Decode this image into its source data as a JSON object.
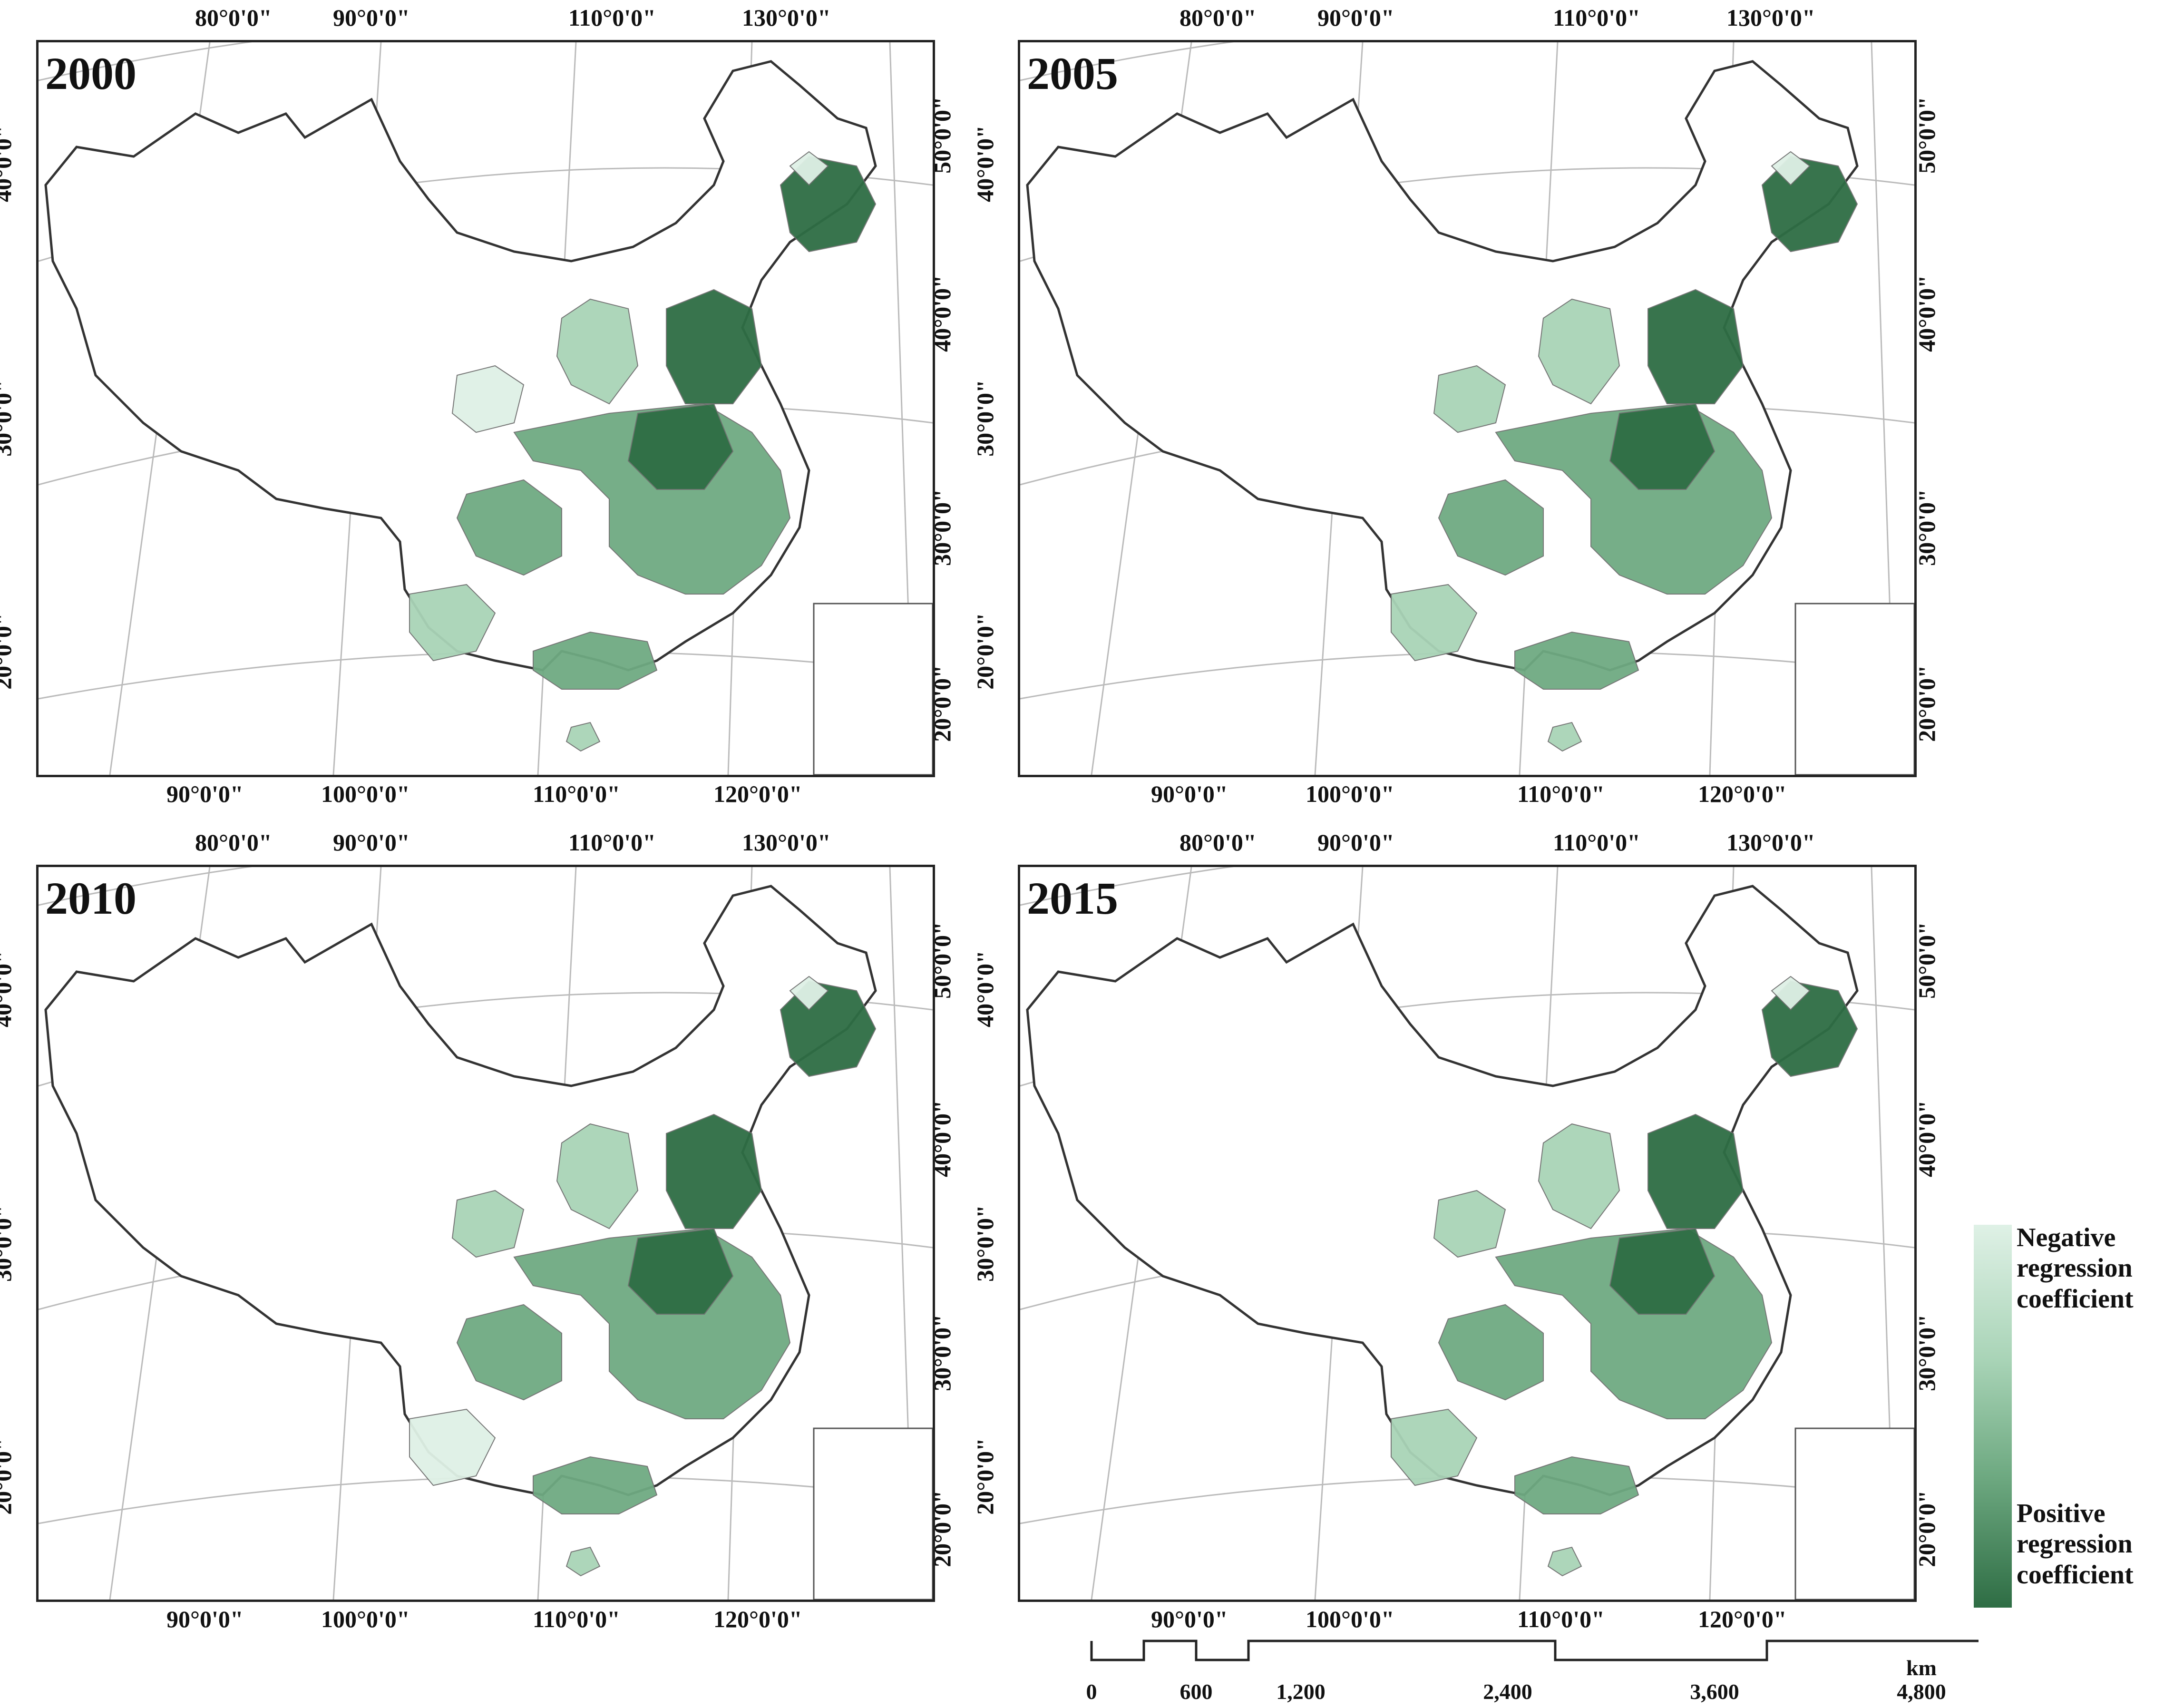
{
  "panels": [
    {
      "year": "2000"
    },
    {
      "year": "2005"
    },
    {
      "year": "2010"
    },
    {
      "year": "2015"
    }
  ],
  "graticule": {
    "top_lon": [
      "80°0'0\"",
      "90°0'0\"",
      "110°0'0\"",
      "130°0'0\""
    ],
    "bottom_lon": [
      "90°0'0\"",
      "100°0'0\"",
      "110°0'0\"",
      "120°0'0\""
    ],
    "left_lat": [
      "40°0'0\"",
      "30°0'0\"",
      "20°0'0\""
    ],
    "right_lat": [
      "50°0'0\"",
      "40°0'0\"",
      "30°0'0\"",
      "20°0'0\""
    ]
  },
  "legend": {
    "negative_label": "Negative regression coefficient",
    "positive_label": "Positive regression coefficient",
    "colors": [
      "#dff1e6",
      "#a9d4b7",
      "#6faa82",
      "#2e6d44"
    ]
  },
  "scale_bar": {
    "unit": "km",
    "labels": [
      "0",
      "600",
      "1,200",
      "2,400",
      "3,600",
      "4,800"
    ]
  }
}
